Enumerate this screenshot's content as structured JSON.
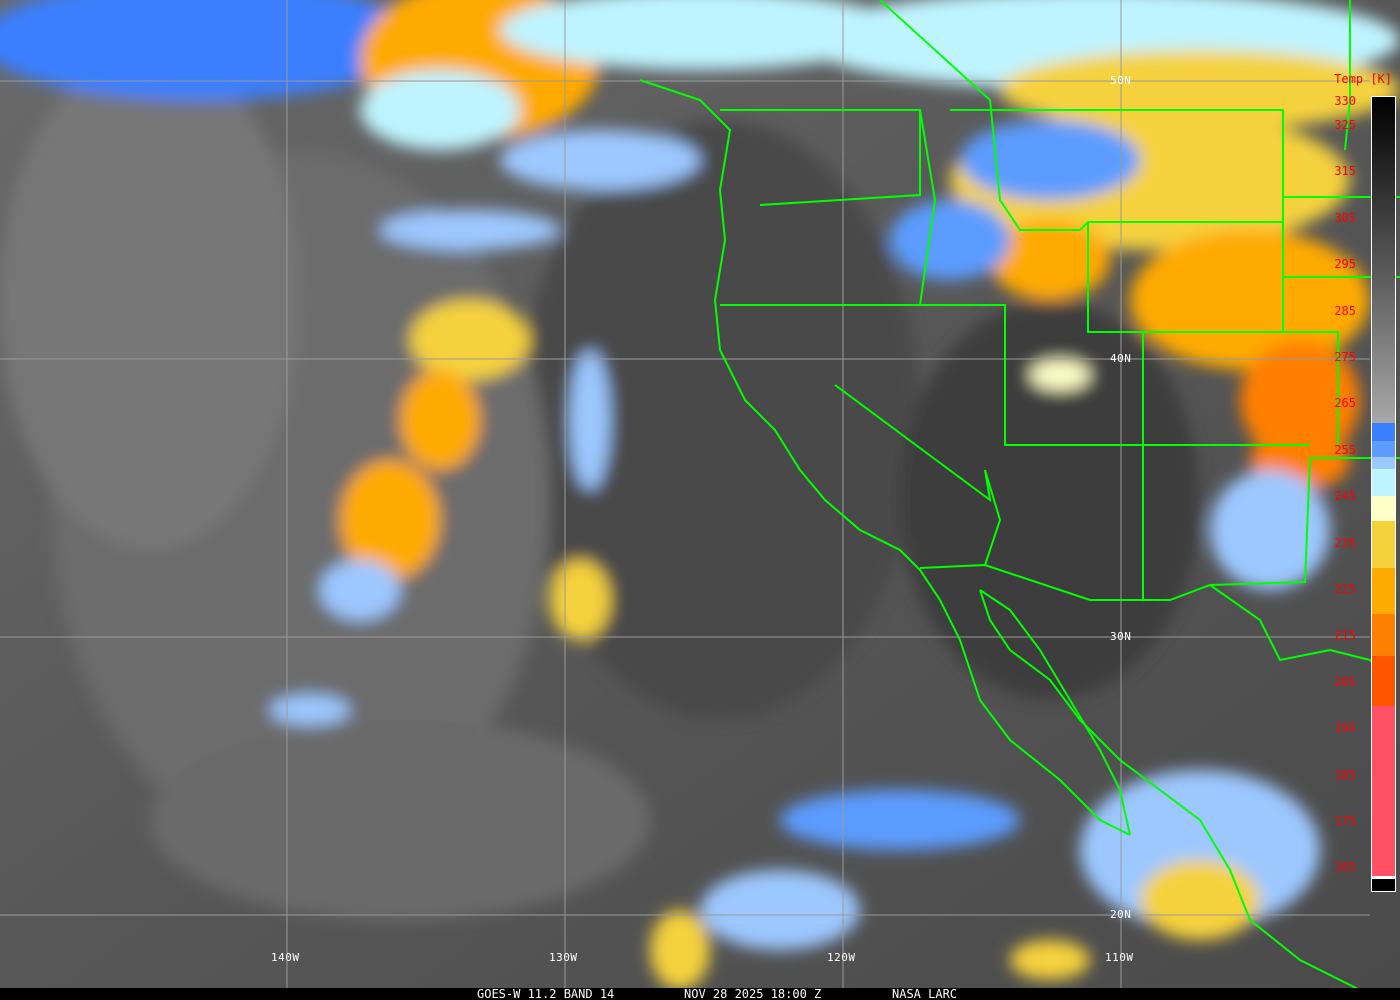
{
  "caption": {
    "satellite": "GOES-W 11.2 BAND 14",
    "datetime": "NOV 28 2025 18:00 Z",
    "source": "NASA LARC"
  },
  "colorbar": {
    "title": "Temp [K]",
    "ticks": [
      "330",
      "325",
      "315",
      "305",
      "295",
      "285",
      "275",
      "265",
      "255",
      "245",
      "235",
      "225",
      "215",
      "205",
      "195",
      "185",
      "175",
      "165"
    ],
    "colors": {
      "warm_top": "#000000",
      "gray_bottom": "#a8a8a8",
      "blue": "#3a7fff",
      "mid_blue": "#5c9cff",
      "light_blue": "#9cc8ff",
      "cyan": "#bff4ff",
      "cream": "#ffffc8",
      "yellow": "#f5d23c",
      "orange": "#ffaa00",
      "dark_orange": "#ff7f00",
      "red_orange": "#ff5500",
      "pink": "#ff5064"
    }
  },
  "grid": {
    "longitudes": [
      "140W",
      "130W",
      "120W",
      "110W"
    ],
    "latitudes": [
      "50N",
      "40N",
      "30N",
      "20N"
    ]
  },
  "colors": {
    "borders": "#00ff00",
    "grid": "#9a9a9a",
    "ocean": "#555555"
  }
}
